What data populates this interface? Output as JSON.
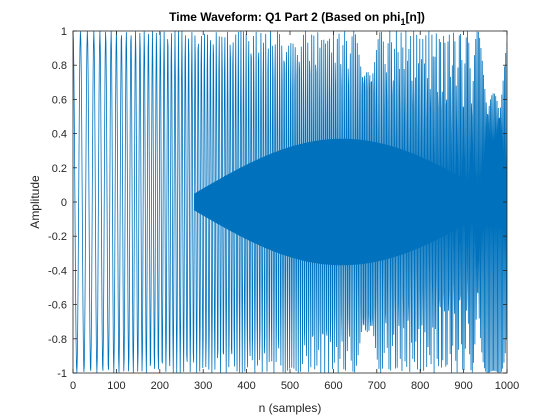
{
  "chart_data": {
    "type": "line",
    "title": "Time Waveform: Q1 Part 2 (Based on phi",
    "title_subscript": "1",
    "title_suffix": "[n])",
    "xlabel": "n (samples)",
    "ylabel": "Amplitude",
    "xlim": [
      0,
      1000
    ],
    "ylim": [
      -1,
      1
    ],
    "x_ticks": [
      0,
      100,
      200,
      300,
      400,
      500,
      600,
      700,
      800,
      900,
      1000
    ],
    "x_tick_labels": [
      "0",
      "100",
      "200",
      "300",
      "400",
      "500",
      "600",
      "700",
      "800",
      "900",
      "1000"
    ],
    "y_ticks": [
      -1,
      -0.8,
      -0.6,
      -0.4,
      -0.2,
      0,
      0.2,
      0.4,
      0.6,
      0.8,
      1
    ],
    "y_tick_labels": [
      "-1",
      "-0.8",
      "-0.6",
      "-0.4",
      "-0.2",
      "0",
      "0.2",
      "0.4",
      "0.6",
      "0.8",
      "1"
    ],
    "grid": false,
    "line_color": "#0072BD",
    "series": [
      {
        "name": "",
        "x_start": 0,
        "x_end": 1000,
        "x_step": 1,
        "amplitude": 1,
        "envelope_x": [
          0,
          240,
          280,
          500,
          900,
          950,
          1000
        ],
        "envelope_y": [
          1,
          1,
          1,
          1,
          1,
          1,
          1
        ],
        "dense_region_x": [
          280,
          960
        ],
        "dense_region_amplitude": 0.32
      }
    ]
  }
}
